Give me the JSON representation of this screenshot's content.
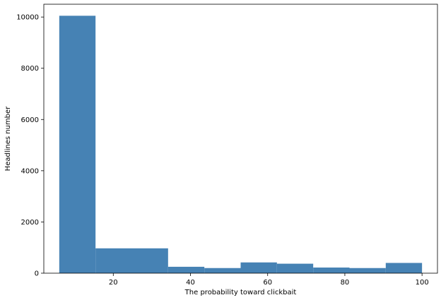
{
  "chart_data": {
    "type": "bar",
    "title": "",
    "xlabel": "The probability toward clickbait",
    "ylabel": "Headlines number",
    "bar_color": "#4682b4",
    "xlim": [
      2,
      104
    ],
    "ylim": [
      0,
      10500
    ],
    "xticks": [
      20,
      40,
      60,
      80,
      100
    ],
    "yticks": [
      0,
      2000,
      4000,
      6000,
      8000,
      10000
    ],
    "grid": false,
    "bins": [
      {
        "x0": 6,
        "x1": 15.4,
        "value": 10050
      },
      {
        "x0": 15.4,
        "x1": 24.8,
        "value": 970
      },
      {
        "x0": 24.8,
        "x1": 34.2,
        "value": 970
      },
      {
        "x0": 34.2,
        "x1": 43.6,
        "value": 250
      },
      {
        "x0": 43.6,
        "x1": 53.0,
        "value": 200
      },
      {
        "x0": 53.0,
        "x1": 62.4,
        "value": 420
      },
      {
        "x0": 62.4,
        "x1": 71.8,
        "value": 370
      },
      {
        "x0": 71.8,
        "x1": 81.2,
        "value": 220
      },
      {
        "x0": 81.2,
        "x1": 90.6,
        "value": 200
      },
      {
        "x0": 90.6,
        "x1": 100,
        "value": 400
      }
    ]
  }
}
